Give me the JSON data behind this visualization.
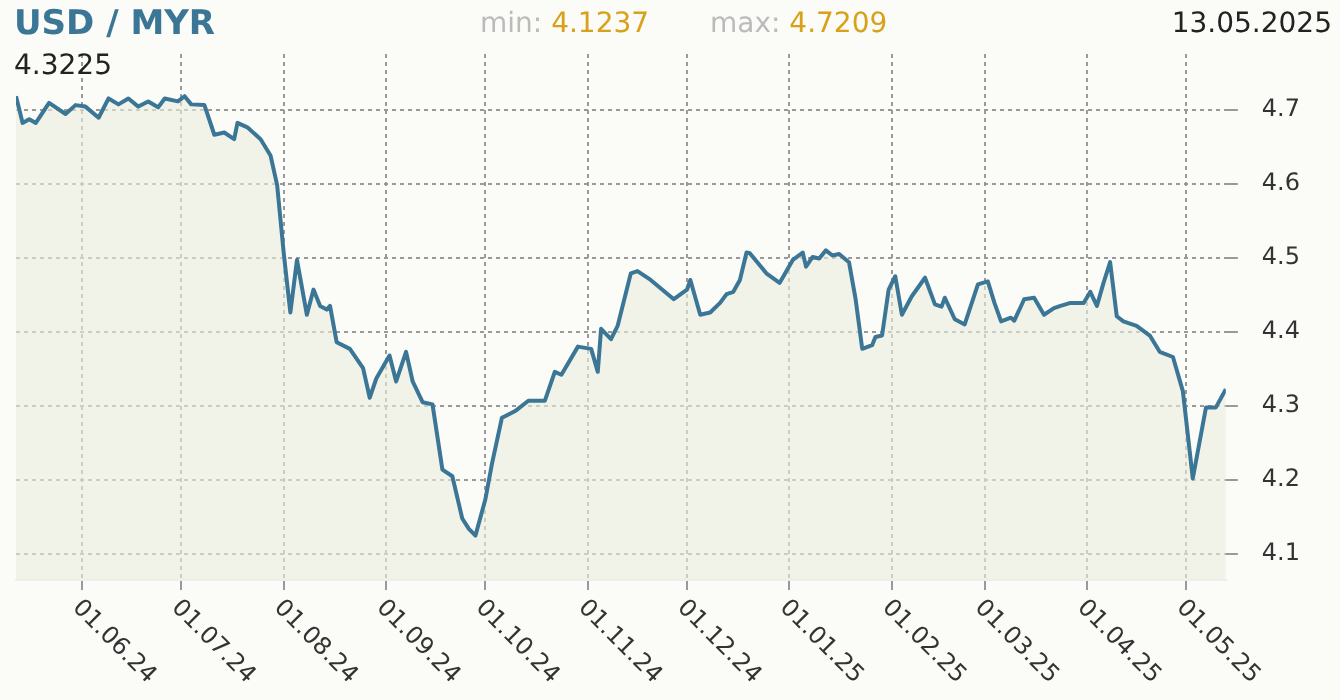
{
  "chart_data": {
    "type": "area",
    "title": "USD / MYR",
    "annotations": [
      "min: 4.1237",
      "max: 4.7209",
      "13.05.2025",
      "4.3225"
    ],
    "x": [
      "2024-05-12",
      "2024-05-14",
      "2024-05-16",
      "2024-05-18",
      "2024-05-22",
      "2024-05-27",
      "2024-05-30",
      "2024-06-02",
      "2024-06-06",
      "2024-06-09",
      "2024-06-12",
      "2024-06-15",
      "2024-06-18",
      "2024-06-21",
      "2024-06-24",
      "2024-06-26",
      "2024-06-30",
      "2024-07-02",
      "2024-07-04",
      "2024-07-08",
      "2024-07-11",
      "2024-07-14",
      "2024-07-17",
      "2024-07-18",
      "2024-07-21",
      "2024-07-25",
      "2024-07-28",
      "2024-07-30",
      "2024-08-01",
      "2024-08-02",
      "2024-08-03",
      "2024-08-05",
      "2024-08-08",
      "2024-08-10",
      "2024-08-12",
      "2024-08-14",
      "2024-08-15",
      "2024-08-17",
      "2024-08-21",
      "2024-08-25",
      "2024-08-27",
      "2024-08-29",
      "2024-09-02",
      "2024-09-04",
      "2024-09-07",
      "2024-09-09",
      "2024-09-12",
      "2024-09-15",
      "2024-09-18",
      "2024-09-21",
      "2024-09-24",
      "2024-09-26",
      "2024-09-28",
      "2024-10-01",
      "2024-10-03",
      "2024-10-06",
      "2024-10-10",
      "2024-10-14",
      "2024-10-19",
      "2024-10-22",
      "2024-10-24",
      "2024-10-29",
      "2024-11-02",
      "2024-11-04",
      "2024-11-05",
      "2024-11-08",
      "2024-11-10",
      "2024-11-14",
      "2024-11-16",
      "2024-11-20",
      "2024-11-27",
      "2024-12-01",
      "2024-12-02",
      "2024-12-05",
      "2024-12-08",
      "2024-12-11",
      "2024-12-13",
      "2024-12-15",
      "2024-12-17",
      "2024-12-19",
      "2024-12-20",
      "2024-12-25",
      "2024-12-29",
      "2025-01-02",
      "2025-01-05",
      "2025-01-06",
      "2025-01-08",
      "2025-01-10",
      "2025-01-12",
      "2025-01-14",
      "2025-01-16",
      "2025-01-19",
      "2025-01-21",
      "2025-01-23",
      "2025-01-26",
      "2025-01-27",
      "2025-01-29",
      "2025-01-31",
      "2025-02-02",
      "2025-02-04",
      "2025-02-07",
      "2025-02-11",
      "2025-02-14",
      "2025-02-16",
      "2025-02-17",
      "2025-02-20",
      "2025-02-23",
      "2025-02-27",
      "2025-03-02",
      "2025-03-04",
      "2025-03-06",
      "2025-03-09",
      "2025-03-10",
      "2025-03-13",
      "2025-03-16",
      "2025-03-19",
      "2025-03-22",
      "2025-03-24",
      "2025-03-27",
      "2025-03-31",
      "2025-04-02",
      "2025-04-04",
      "2025-04-06",
      "2025-04-08",
      "2025-04-10",
      "2025-04-12",
      "2025-04-16",
      "2025-04-20",
      "2025-04-23",
      "2025-04-27",
      "2025-04-30",
      "2025-05-03",
      "2025-05-07",
      "2025-05-10",
      "2025-05-13"
    ],
    "series": [
      {
        "color": "#3b7696",
        "values": [
          4.718,
          4.682,
          4.687,
          4.682,
          4.709,
          4.694,
          4.706,
          4.704,
          4.689,
          4.715,
          4.707,
          4.715,
          4.704,
          4.711,
          4.703,
          4.715,
          4.711,
          4.718,
          4.707,
          4.706,
          4.666,
          4.669,
          4.66,
          4.682,
          4.676,
          4.66,
          4.638,
          4.598,
          4.506,
          4.466,
          4.426,
          4.497,
          4.423,
          4.457,
          4.435,
          4.43,
          4.435,
          4.386,
          4.377,
          4.351,
          4.311,
          4.337,
          4.368,
          4.333,
          4.373,
          4.333,
          4.305,
          4.302,
          4.214,
          4.205,
          4.148,
          4.134,
          4.125,
          4.174,
          4.222,
          4.284,
          4.293,
          4.307,
          4.307,
          4.346,
          4.342,
          4.38,
          4.377,
          4.346,
          4.404,
          4.39,
          4.408,
          4.479,
          4.482,
          4.47,
          4.444,
          4.457,
          4.47,
          4.423,
          4.426,
          4.439,
          4.451,
          4.454,
          4.47,
          4.507,
          4.506,
          4.479,
          4.466,
          4.497,
          4.507,
          4.488,
          4.501,
          4.499,
          4.51,
          4.503,
          4.505,
          4.494,
          4.444,
          4.377,
          4.382,
          4.393,
          4.395,
          4.457,
          4.475,
          4.423,
          4.448,
          4.473,
          4.437,
          4.434,
          4.446,
          4.417,
          4.41,
          4.464,
          4.468,
          4.439,
          4.414,
          4.419,
          4.415,
          4.444,
          4.446,
          4.423,
          4.432,
          4.435,
          4.439,
          4.439,
          4.454,
          4.435,
          4.466,
          4.494,
          4.421,
          4.414,
          4.408,
          4.395,
          4.373,
          4.366,
          4.32,
          4.202,
          4.298,
          4.298,
          4.3225
        ]
      }
    ],
    "xlim": [
      "2024-05-12",
      "2025-05-13"
    ],
    "xticks": [
      {
        "value": "2024-06-01",
        "label": "01.06.24"
      },
      {
        "value": "2024-07-01",
        "label": "01.07.24"
      },
      {
        "value": "2024-08-01",
        "label": "01.08.24"
      },
      {
        "value": "2024-09-01",
        "label": "01.09.24"
      },
      {
        "value": "2024-10-01",
        "label": "01.10.24"
      },
      {
        "value": "2024-11-01",
        "label": "01.11.24"
      },
      {
        "value": "2024-12-01",
        "label": "01.12.24"
      },
      {
        "value": "2025-01-01",
        "label": "01.01.25"
      },
      {
        "value": "2025-02-01",
        "label": "01.02.25"
      },
      {
        "value": "2025-03-01",
        "label": "01.03.25"
      },
      {
        "value": "2025-04-01",
        "label": "01.04.25"
      },
      {
        "value": "2025-05-01",
        "label": "01.05.25"
      }
    ],
    "ylim": [
      4.065,
      4.775
    ],
    "yticks": [
      4.1,
      4.2,
      4.3,
      4.4,
      4.5,
      4.6,
      4.7
    ],
    "grid": true,
    "legend": false,
    "marker": "none",
    "line_style": "solid"
  }
}
